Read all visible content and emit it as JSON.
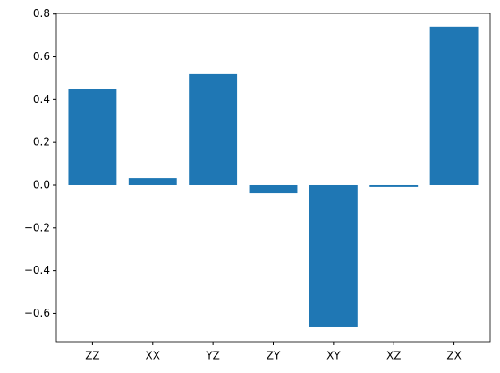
{
  "chart_data": {
    "type": "bar",
    "color": "#1f77b4",
    "categories": [
      "ZZ",
      "XX",
      "YZ",
      "ZY",
      "XY",
      "XZ",
      "ZX"
    ],
    "values": [
      0.448,
      0.033,
      0.519,
      -0.038,
      -0.665,
      -0.008,
      0.741
    ],
    "ylim": [
      -0.732,
      0.803
    ],
    "yticks": [
      {
        "value": -0.6,
        "label": "−0.6"
      },
      {
        "value": -0.4,
        "label": "−0.4"
      },
      {
        "value": -0.2,
        "label": "−0.2"
      },
      {
        "value": 0,
        "label": "0.0"
      },
      {
        "value": 0.2,
        "label": "0.2"
      },
      {
        "value": 0.4,
        "label": "0.4"
      },
      {
        "value": 0.6,
        "label": "0.6"
      },
      {
        "value": 0.8,
        "label": "0.8"
      }
    ],
    "grid": false
  }
}
